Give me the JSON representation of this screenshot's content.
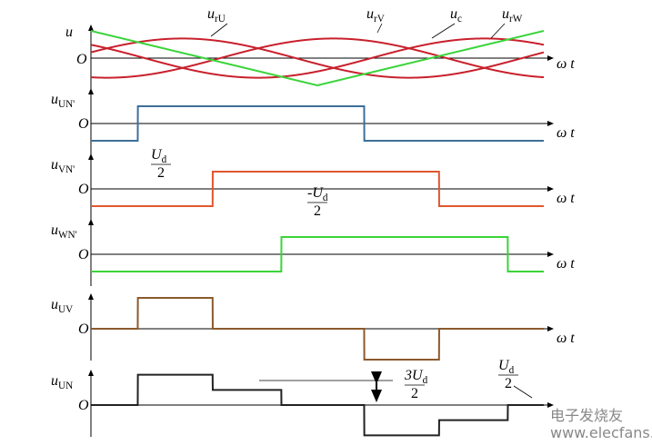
{
  "top_panel": {
    "y_label": "u",
    "origin": "O",
    "x_label": "ω t",
    "curves": [
      {
        "main": "u",
        "sub": "rU"
      },
      {
        "main": "u",
        "sub": "rV"
      },
      {
        "main": "u",
        "sub": "c"
      },
      {
        "main": "u",
        "sub": "rW"
      }
    ]
  },
  "panels": [
    {
      "y_main": "u",
      "y_sub": "UN'",
      "origin": "O",
      "x_label": "ω t"
    },
    {
      "y_main": "u",
      "y_sub": "VN'",
      "origin": "O",
      "x_label": "ω t"
    },
    {
      "y_main": "u",
      "y_sub": "WN'",
      "origin": "O",
      "x_label": "ω t"
    },
    {
      "y_main": "u",
      "y_sub": "UV",
      "origin": "O",
      "x_label": "ω t"
    },
    {
      "y_main": "u",
      "y_sub": "UN",
      "origin": "O"
    }
  ],
  "annotations": [
    {
      "main": "U",
      "sub": "d",
      "denominator": "2"
    },
    {
      "main": "-U",
      "sub": "d",
      "denominator": "2"
    },
    {
      "main": "3U",
      "sub": "d",
      "denominator": "2"
    },
    {
      "main": "U",
      "sub": "d",
      "denominator": "2"
    }
  ],
  "watermark": {
    "brand": "电子发烧友",
    "url": "www.elecfans.com"
  }
}
